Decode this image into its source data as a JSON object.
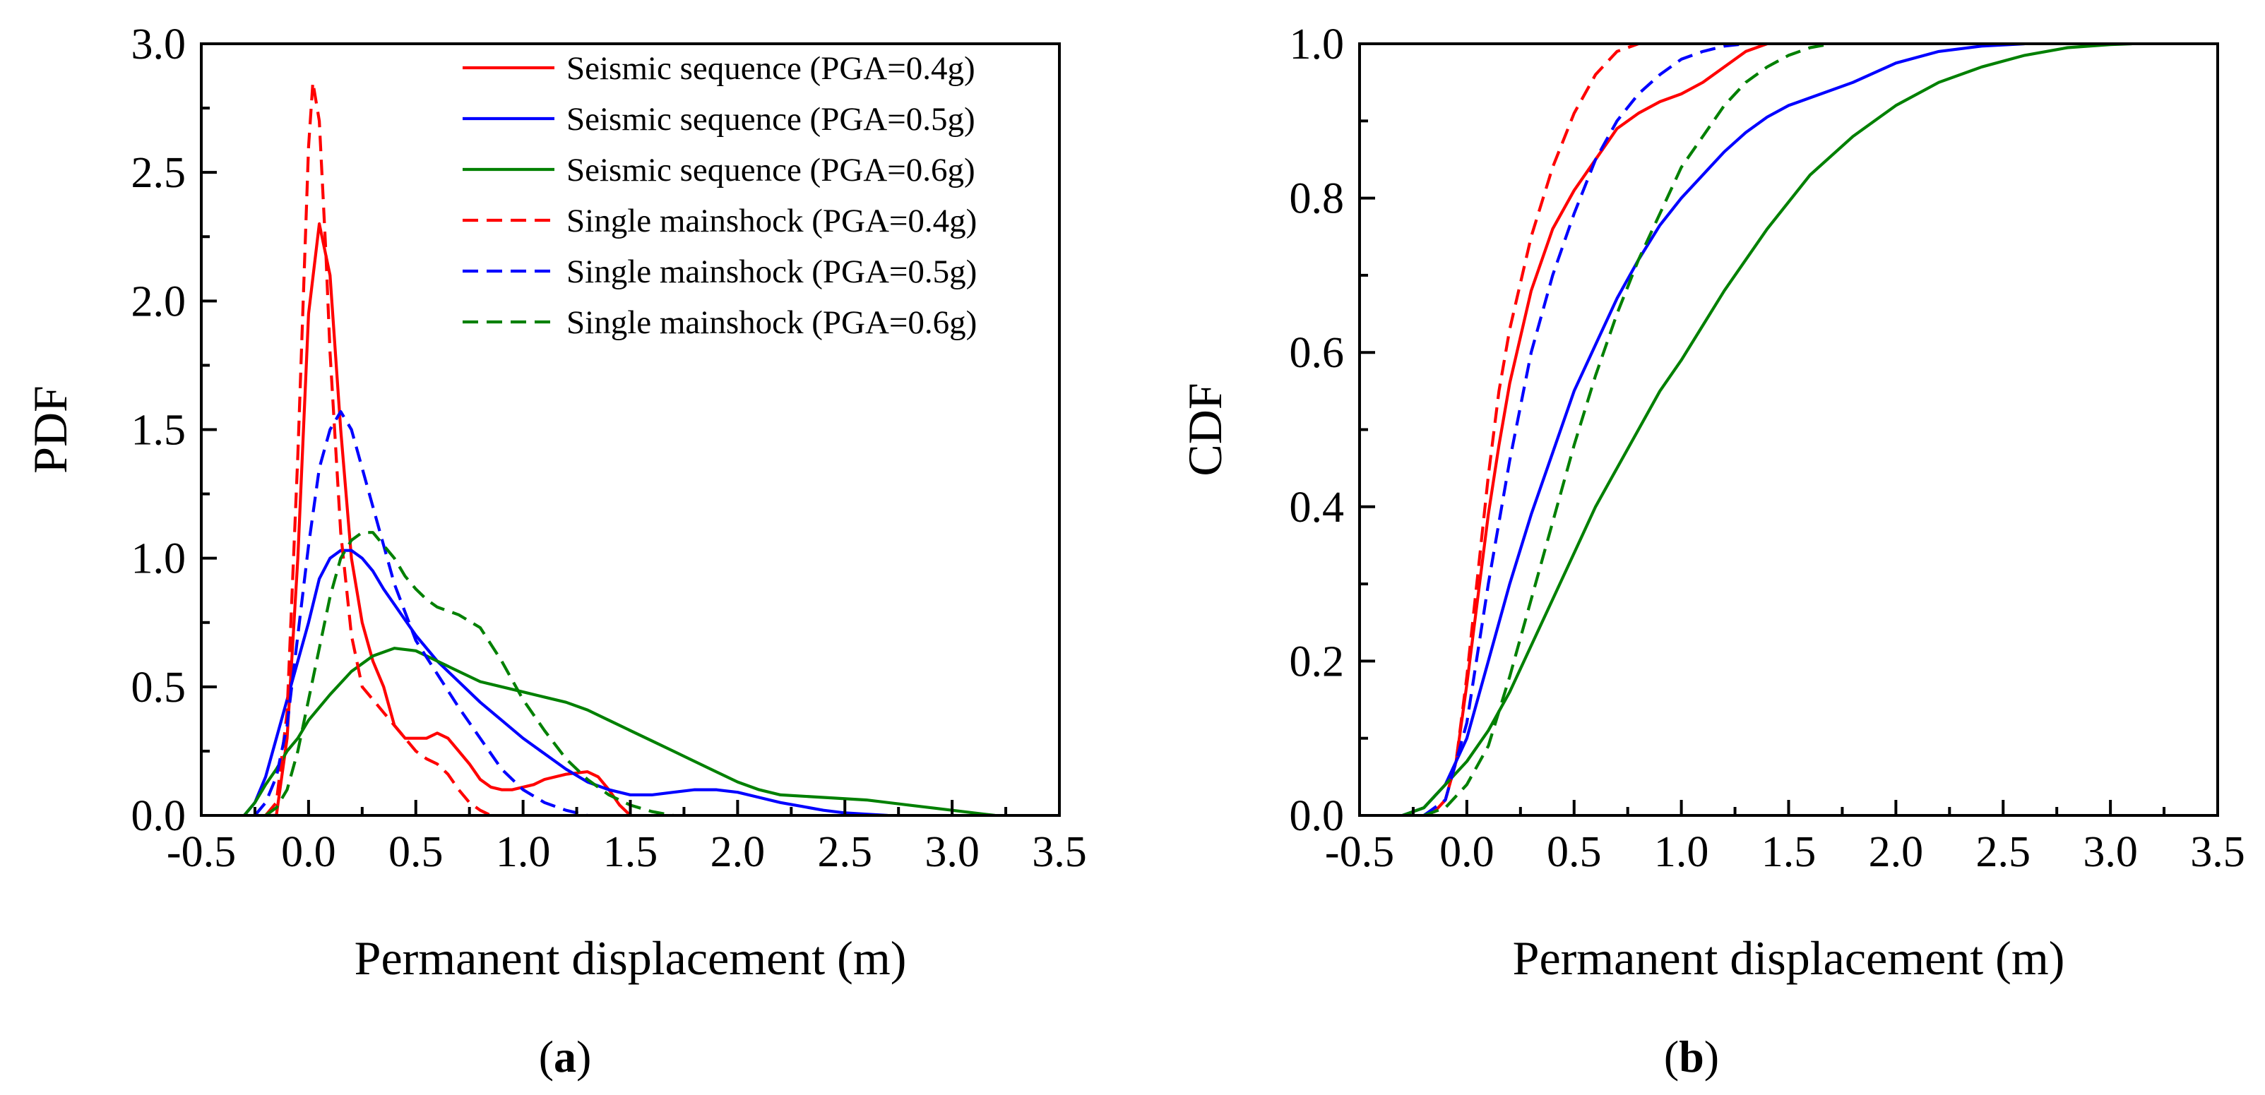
{
  "figure": {
    "panel_a_label": "a",
    "panel_b_label": "b"
  },
  "colors": {
    "red": "#ff0000",
    "blue": "#0000ff",
    "green": "#008000",
    "axis": "#000000"
  },
  "chart_data": [
    {
      "type": "line",
      "panel": "a",
      "title": "",
      "xlabel": "Permanent displacement (m)",
      "ylabel": "PDF",
      "xlim": [
        -0.5,
        3.5
      ],
      "ylim": [
        0,
        3.0
      ],
      "xticks": [
        -0.5,
        0.0,
        0.5,
        1.0,
        1.5,
        2.0,
        2.5,
        3.0,
        3.5
      ],
      "xtick_labels": [
        "-0.5",
        "0.0",
        "0.5",
        "1.0",
        "1.5",
        "2.0",
        "2.5",
        "3.0",
        "3.5"
      ],
      "yticks": [
        0.0,
        0.5,
        1.0,
        1.5,
        2.0,
        2.5,
        3.0
      ],
      "ytick_labels": [
        "0.0",
        "0.5",
        "1.0",
        "1.5",
        "2.0",
        "2.5",
        "3.0"
      ],
      "legend_position": "top-right",
      "series": [
        {
          "name": "Seismic sequence (PGA=0.4g)",
          "color": "red",
          "dash": "solid",
          "x": [
            -0.2,
            -0.15,
            -0.1,
            -0.05,
            0.0,
            0.05,
            0.1,
            0.15,
            0.2,
            0.25,
            0.3,
            0.35,
            0.4,
            0.45,
            0.5,
            0.55,
            0.6,
            0.65,
            0.7,
            0.75,
            0.8,
            0.85,
            0.9,
            0.95,
            1.0,
            1.05,
            1.1,
            1.2,
            1.3,
            1.35,
            1.4,
            1.45,
            1.5
          ],
          "y": [
            0.0,
            0.0,
            0.3,
            1.0,
            1.95,
            2.3,
            2.1,
            1.5,
            1.0,
            0.75,
            0.6,
            0.5,
            0.35,
            0.3,
            0.3,
            0.3,
            0.32,
            0.3,
            0.25,
            0.2,
            0.14,
            0.11,
            0.1,
            0.1,
            0.11,
            0.12,
            0.14,
            0.16,
            0.17,
            0.15,
            0.1,
            0.04,
            0.0
          ]
        },
        {
          "name": "Seismic sequence (PGA=0.5g)",
          "color": "blue",
          "dash": "solid",
          "x": [
            -0.3,
            -0.25,
            -0.2,
            -0.15,
            -0.1,
            -0.05,
            0.0,
            0.05,
            0.1,
            0.15,
            0.2,
            0.25,
            0.3,
            0.35,
            0.4,
            0.5,
            0.6,
            0.7,
            0.8,
            0.9,
            1.0,
            1.1,
            1.2,
            1.3,
            1.4,
            1.5,
            1.6,
            1.7,
            1.8,
            1.9,
            2.0,
            2.1,
            2.2,
            2.3,
            2.4,
            2.5,
            2.6,
            2.7
          ],
          "y": [
            0.0,
            0.05,
            0.15,
            0.3,
            0.45,
            0.6,
            0.75,
            0.92,
            1.0,
            1.03,
            1.03,
            1.0,
            0.95,
            0.88,
            0.82,
            0.7,
            0.6,
            0.52,
            0.44,
            0.37,
            0.3,
            0.24,
            0.18,
            0.13,
            0.1,
            0.08,
            0.08,
            0.09,
            0.1,
            0.1,
            0.09,
            0.07,
            0.05,
            0.035,
            0.02,
            0.01,
            0.005,
            0.0
          ]
        },
        {
          "name": "Seismic sequence (PGA=0.6g)",
          "color": "green",
          "dash": "solid",
          "x": [
            -0.3,
            -0.25,
            -0.2,
            -0.15,
            -0.1,
            -0.05,
            0.0,
            0.1,
            0.2,
            0.3,
            0.4,
            0.5,
            0.6,
            0.7,
            0.8,
            0.9,
            1.0,
            1.1,
            1.2,
            1.3,
            1.4,
            1.5,
            1.6,
            1.7,
            1.8,
            1.9,
            2.0,
            2.1,
            2.2,
            2.4,
            2.6,
            2.8,
            3.0,
            3.2
          ],
          "y": [
            0.0,
            0.05,
            0.12,
            0.18,
            0.25,
            0.3,
            0.37,
            0.47,
            0.56,
            0.62,
            0.65,
            0.64,
            0.6,
            0.56,
            0.52,
            0.5,
            0.48,
            0.46,
            0.44,
            0.41,
            0.37,
            0.33,
            0.29,
            0.25,
            0.21,
            0.17,
            0.13,
            0.1,
            0.08,
            0.07,
            0.06,
            0.04,
            0.02,
            0.0
          ]
        },
        {
          "name": "Single mainshock (PGA=0.4g)",
          "color": "red",
          "dash": "dashed",
          "x": [
            -0.2,
            -0.15,
            -0.1,
            -0.05,
            0.0,
            0.02,
            0.05,
            0.08,
            0.1,
            0.15,
            0.2,
            0.25,
            0.3,
            0.35,
            0.4,
            0.45,
            0.5,
            0.55,
            0.6,
            0.65,
            0.7,
            0.75,
            0.8,
            0.85
          ],
          "y": [
            0.0,
            0.05,
            0.4,
            1.4,
            2.6,
            2.85,
            2.7,
            2.2,
            1.8,
            1.1,
            0.7,
            0.5,
            0.45,
            0.4,
            0.35,
            0.3,
            0.25,
            0.22,
            0.2,
            0.16,
            0.1,
            0.05,
            0.02,
            0.0
          ]
        },
        {
          "name": "Single mainshock (PGA=0.5g)",
          "color": "blue",
          "dash": "dashed",
          "x": [
            -0.25,
            -0.2,
            -0.15,
            -0.1,
            -0.05,
            0.0,
            0.05,
            0.1,
            0.15,
            0.2,
            0.25,
            0.3,
            0.35,
            0.4,
            0.5,
            0.6,
            0.7,
            0.8,
            0.9,
            1.0,
            1.1,
            1.2,
            1.3
          ],
          "y": [
            0.0,
            0.05,
            0.15,
            0.35,
            0.7,
            1.05,
            1.35,
            1.5,
            1.57,
            1.5,
            1.35,
            1.2,
            1.05,
            0.9,
            0.68,
            0.55,
            0.42,
            0.3,
            0.18,
            0.1,
            0.05,
            0.02,
            0.0
          ]
        },
        {
          "name": "Single mainshock (PGA=0.6g)",
          "color": "green",
          "dash": "dashed",
          "x": [
            -0.2,
            -0.15,
            -0.1,
            -0.05,
            0.0,
            0.05,
            0.1,
            0.15,
            0.2,
            0.25,
            0.3,
            0.35,
            0.4,
            0.45,
            0.5,
            0.55,
            0.6,
            0.7,
            0.8,
            0.9,
            1.0,
            1.1,
            1.2,
            1.3,
            1.4,
            1.5,
            1.6,
            1.7
          ],
          "y": [
            0.0,
            0.03,
            0.1,
            0.25,
            0.45,
            0.65,
            0.85,
            1.0,
            1.07,
            1.1,
            1.1,
            1.05,
            1.0,
            0.93,
            0.88,
            0.84,
            0.81,
            0.78,
            0.73,
            0.6,
            0.45,
            0.33,
            0.22,
            0.14,
            0.08,
            0.04,
            0.015,
            0.0
          ]
        }
      ]
    },
    {
      "type": "line",
      "panel": "b",
      "title": "",
      "xlabel": "Permanent displacement (m)",
      "ylabel": "CDF",
      "xlim": [
        -0.5,
        3.5
      ],
      "ylim": [
        0,
        1.0
      ],
      "xticks": [
        -0.5,
        0.0,
        0.5,
        1.0,
        1.5,
        2.0,
        2.5,
        3.0,
        3.5
      ],
      "xtick_labels": [
        "-0.5",
        "0.0",
        "0.5",
        "1.0",
        "1.5",
        "2.0",
        "2.5",
        "3.0",
        "3.5"
      ],
      "yticks": [
        0.0,
        0.2,
        0.4,
        0.6,
        0.8,
        1.0
      ],
      "ytick_labels": [
        "0.0",
        "0.2",
        "0.4",
        "0.6",
        "0.8",
        "1.0"
      ],
      "series": [
        {
          "name": "Seismic sequence (PGA=0.4g)",
          "color": "red",
          "dash": "solid",
          "x": [
            -0.2,
            -0.15,
            -0.1,
            -0.05,
            0.0,
            0.05,
            0.1,
            0.15,
            0.2,
            0.3,
            0.4,
            0.5,
            0.6,
            0.7,
            0.8,
            0.9,
            1.0,
            1.1,
            1.2,
            1.3,
            1.4
          ],
          "y": [
            0.0,
            0.005,
            0.02,
            0.07,
            0.17,
            0.28,
            0.39,
            0.48,
            0.56,
            0.68,
            0.76,
            0.81,
            0.85,
            0.89,
            0.91,
            0.925,
            0.935,
            0.95,
            0.97,
            0.99,
            1.0
          ]
        },
        {
          "name": "Seismic sequence (PGA=0.5g)",
          "color": "blue",
          "dash": "solid",
          "x": [
            -0.3,
            -0.2,
            -0.1,
            0.0,
            0.1,
            0.2,
            0.3,
            0.4,
            0.5,
            0.6,
            0.7,
            0.8,
            0.9,
            1.0,
            1.1,
            1.2,
            1.3,
            1.4,
            1.5,
            1.6,
            1.8,
            2.0,
            2.2,
            2.4,
            2.6
          ],
          "y": [
            0.0,
            0.01,
            0.04,
            0.1,
            0.2,
            0.3,
            0.39,
            0.47,
            0.55,
            0.61,
            0.67,
            0.72,
            0.765,
            0.8,
            0.83,
            0.86,
            0.885,
            0.905,
            0.92,
            0.93,
            0.95,
            0.975,
            0.99,
            0.997,
            1.0
          ]
        },
        {
          "name": "Seismic sequence (PGA=0.6g)",
          "color": "green",
          "dash": "solid",
          "x": [
            -0.3,
            -0.2,
            -0.1,
            0.0,
            0.1,
            0.2,
            0.3,
            0.4,
            0.5,
            0.6,
            0.7,
            0.8,
            0.9,
            1.0,
            1.2,
            1.4,
            1.6,
            1.8,
            2.0,
            2.2,
            2.4,
            2.6,
            2.8,
            3.0,
            3.1
          ],
          "y": [
            0.0,
            0.01,
            0.04,
            0.07,
            0.11,
            0.16,
            0.22,
            0.28,
            0.34,
            0.4,
            0.45,
            0.5,
            0.55,
            0.59,
            0.68,
            0.76,
            0.83,
            0.88,
            0.92,
            0.95,
            0.97,
            0.985,
            0.995,
            0.999,
            1.0
          ]
        },
        {
          "name": "Single mainshock (PGA=0.4g)",
          "color": "red",
          "dash": "dashed",
          "x": [
            -0.2,
            -0.15,
            -0.1,
            -0.05,
            0.0,
            0.05,
            0.1,
            0.15,
            0.2,
            0.3,
            0.4,
            0.5,
            0.6,
            0.7,
            0.8
          ],
          "y": [
            0.0,
            0.005,
            0.02,
            0.07,
            0.18,
            0.31,
            0.44,
            0.55,
            0.63,
            0.75,
            0.84,
            0.91,
            0.96,
            0.99,
            1.0
          ]
        },
        {
          "name": "Single mainshock (PGA=0.5g)",
          "color": "blue",
          "dash": "dashed",
          "x": [
            -0.2,
            -0.1,
            0.0,
            0.1,
            0.2,
            0.3,
            0.4,
            0.5,
            0.6,
            0.7,
            0.8,
            0.9,
            1.0,
            1.1,
            1.2,
            1.3
          ],
          "y": [
            0.0,
            0.02,
            0.12,
            0.3,
            0.46,
            0.6,
            0.7,
            0.78,
            0.85,
            0.9,
            0.935,
            0.96,
            0.98,
            0.99,
            0.997,
            1.0
          ]
        },
        {
          "name": "Single mainshock (PGA=0.6g)",
          "color": "green",
          "dash": "dashed",
          "x": [
            -0.2,
            -0.1,
            0.0,
            0.1,
            0.2,
            0.3,
            0.4,
            0.5,
            0.6,
            0.7,
            0.8,
            0.9,
            1.0,
            1.1,
            1.2,
            1.3,
            1.4,
            1.5,
            1.6,
            1.7
          ],
          "y": [
            0.0,
            0.01,
            0.04,
            0.09,
            0.18,
            0.28,
            0.38,
            0.48,
            0.57,
            0.65,
            0.72,
            0.78,
            0.84,
            0.88,
            0.92,
            0.95,
            0.97,
            0.985,
            0.995,
            1.0
          ]
        }
      ]
    }
  ]
}
